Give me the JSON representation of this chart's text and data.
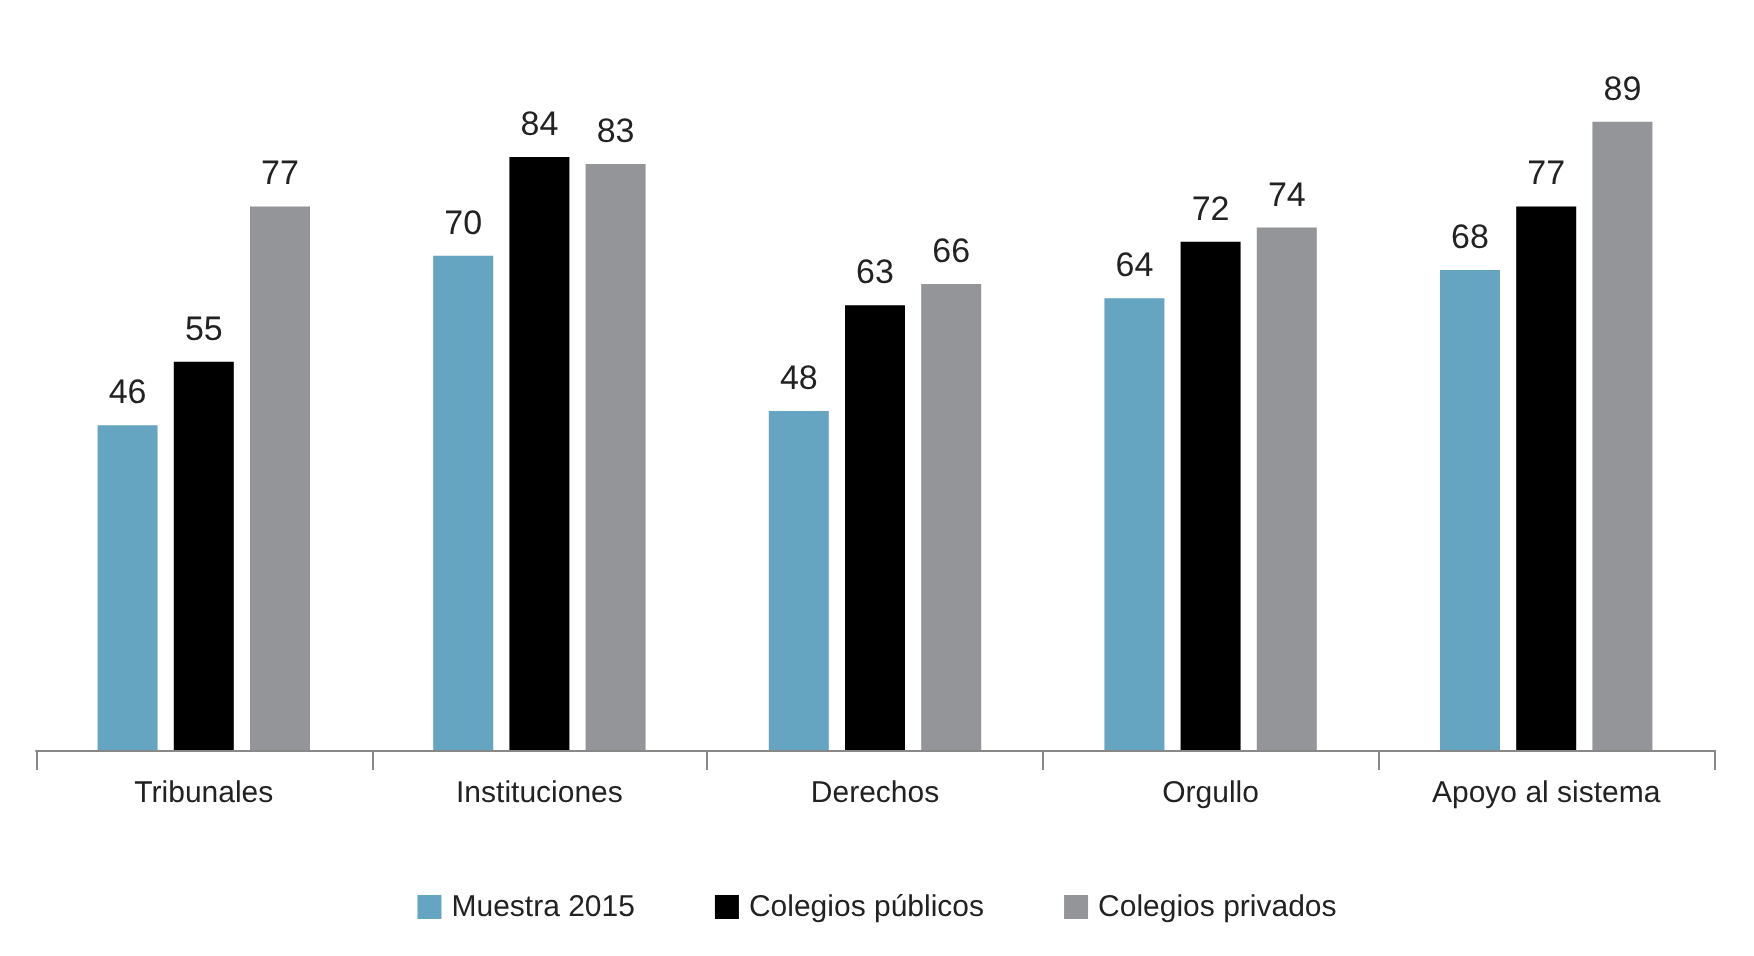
{
  "chart_data": {
    "type": "bar",
    "categories": [
      "Tribunales",
      "Instituciones",
      "Derechos",
      "Orgullo",
      "Apoyo al sistema"
    ],
    "series": [
      {
        "name": "Muestra 2015",
        "color": "#65a5c1",
        "values": [
          46,
          70,
          48,
          64,
          68
        ]
      },
      {
        "name": "Colegios públicos",
        "color": "#000000",
        "values": [
          55,
          84,
          63,
          72,
          77
        ]
      },
      {
        "name": "Colegios privados",
        "color": "#949598",
        "values": [
          77,
          83,
          66,
          74,
          89
        ]
      }
    ],
    "data_labels": true,
    "legend": "bottom"
  }
}
